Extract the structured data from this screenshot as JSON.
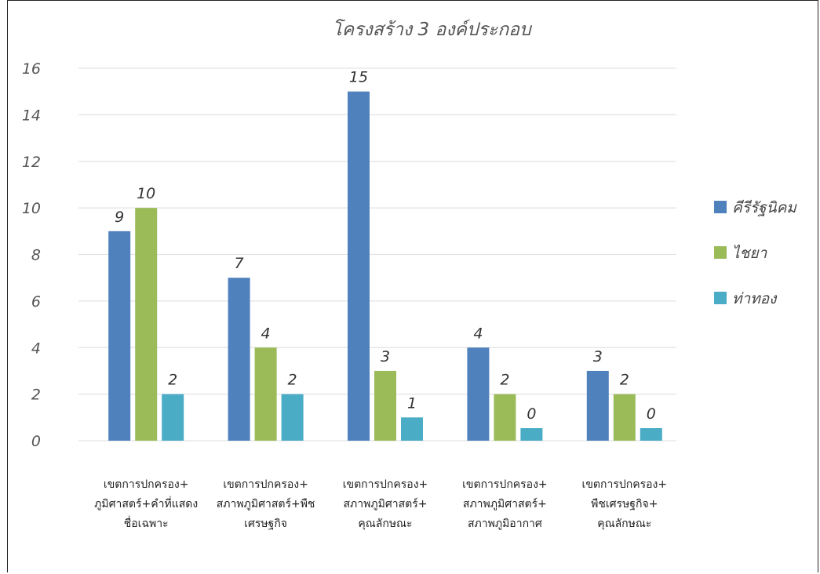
{
  "chart_data": {
    "type": "bar",
    "title": "โครงสร้าง 3 องค์ประกอบ",
    "xlabel": "",
    "ylabel": "",
    "ylim": [
      0,
      16
    ],
    "yticks": [
      0,
      2,
      4,
      6,
      8,
      10,
      12,
      14,
      16
    ],
    "grid": true,
    "legend_position": "right",
    "categories": [
      [
        "เขตการปกครอง+",
        "ภูมิศาสตร์+คำที่แสดง",
        "ชื่อเฉพาะ"
      ],
      [
        "เขตการปกครอง+",
        "สภาพภูมิศาสตร์+พืช",
        "เศรษฐกิจ"
      ],
      [
        "เขตการปกครอง+",
        "สภาพภูมิศาสตร์+",
        "คุณลักษณะ"
      ],
      [
        "เขตการปกครอง+",
        "สภาพภูมิศาสตร์+",
        "สภาพภูมิอากาศ"
      ],
      [
        "เขตการปกครอง+",
        "พืชเศรษฐกิจ+",
        "คุณลักษณะ"
      ]
    ],
    "series": [
      {
        "name": "คีรีรัฐนิคม",
        "color": "#4F81BD",
        "values": [
          9,
          7,
          15,
          4,
          3
        ]
      },
      {
        "name": "ไชยา",
        "color": "#9BBB59",
        "values": [
          10,
          4,
          3,
          2,
          2
        ]
      },
      {
        "name": "ท่าทอง",
        "color": "#4BACC6",
        "values": [
          2,
          2,
          1,
          0,
          0
        ]
      }
    ]
  }
}
